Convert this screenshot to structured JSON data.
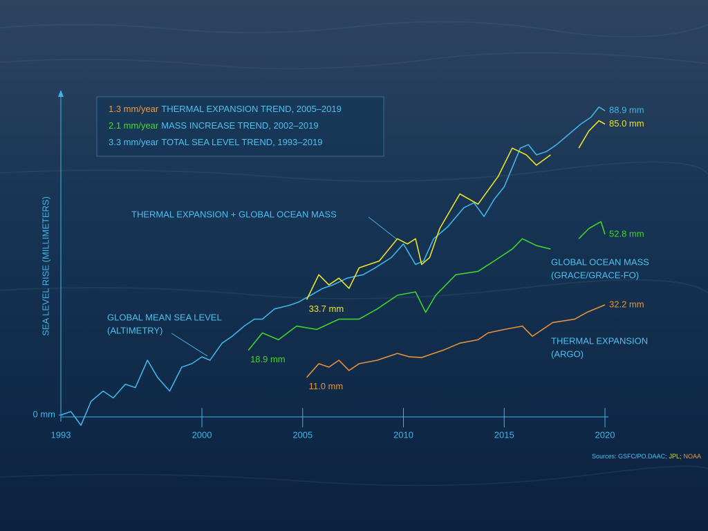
{
  "chart_data": {
    "type": "line",
    "ylabel": "SEA LEVEL RISE (MILLIMETERS)",
    "xlim": [
      1993,
      2020
    ],
    "ylim": [
      -5,
      95
    ],
    "xticks": [
      1993,
      2000,
      2005,
      2010,
      2015,
      2020
    ],
    "yticks": [
      {
        "value": 0,
        "label": "0 mm"
      }
    ],
    "trends": [
      {
        "rate": "1.3 mm/year",
        "label": "THERMAL EXPANSION TREND, 2005–2019",
        "color": "#eb9a3e"
      },
      {
        "rate": "2.1 mm/year",
        "label": "MASS INCREASE TREND, 2002–2019",
        "color": "#46d82e"
      },
      {
        "rate": "3.3 mm/year",
        "label": "TOTAL SEA LEVEL TREND, 1993–2019",
        "color": "#4cc0ee"
      }
    ],
    "sources": [
      {
        "text": "Sources: GSFC/PO.DAAC;",
        "color": "#4cc0ee"
      },
      {
        "text": "JPL;",
        "color": "#c8e020"
      },
      {
        "text": "NOAA",
        "color": "#eb9a3e"
      }
    ],
    "series": [
      {
        "name": "GLOBAL MEAN SEA LEVEL",
        "source": "(ALTIMETRY)",
        "color": "#3fb6e8",
        "x": [
          1993,
          1993.5,
          1994,
          1994.5,
          1995.1,
          1995.6,
          1996.2,
          1996.7,
          1997.3,
          1997.8,
          1998.4,
          1999,
          1999.5,
          2000,
          2000.4,
          2001,
          2001.5,
          2002.1,
          2002.6,
          2003,
          2003.6,
          2004.3,
          2004.8,
          2005.4,
          2006,
          2006.5,
          2007.2,
          2008,
          2008.6,
          2009.4,
          2010,
          2010.6,
          2011,
          2011.5,
          2012.2,
          2013,
          2013.5,
          2014,
          2014.5,
          2015,
          2015.8,
          2016.2,
          2016.6,
          2017.1,
          2017.6,
          2018.2,
          2018.8,
          2019.3,
          2019.7,
          2020
        ],
        "values": [
          0,
          1,
          -3,
          4,
          7,
          5,
          9,
          8,
          16,
          11,
          7,
          14,
          15,
          17,
          16,
          21,
          23,
          26,
          28,
          28,
          31,
          32,
          33,
          35,
          37,
          38,
          40,
          41,
          43,
          46,
          50,
          44,
          45,
          51.5,
          55,
          60.6,
          62,
          58,
          63,
          66.7,
          78,
          79,
          76,
          77,
          79,
          82,
          85,
          87,
          90,
          88.9
        ],
        "value_labels": [
          null,
          null,
          null,
          null,
          null,
          null,
          null,
          null,
          null,
          null,
          null,
          null,
          null,
          null,
          null,
          null,
          null,
          null,
          null,
          null,
          null,
          null,
          null,
          null,
          null,
          null,
          null,
          null,
          null,
          null,
          null,
          null,
          null,
          null,
          null,
          null,
          null,
          null,
          null,
          null,
          null,
          null,
          null,
          null,
          null,
          null,
          null,
          null,
          null,
          "88.9 mm"
        ]
      },
      {
        "name": "THERMAL EXPANSION + GLOBAL OCEAN MASS",
        "color": "#f0e523",
        "x": [
          2005.2,
          2005.8,
          2006.3,
          2006.8,
          2007.3,
          2007.8,
          2008.8,
          2009.7,
          2010.2,
          2010.6,
          2010.9,
          2011.3,
          2011.8,
          2012.8,
          2013.7,
          2014.7,
          2015.4,
          2016.1,
          2016.6,
          2017.3,
          2017.9,
          2018.7,
          2019.2,
          2019.7,
          2020
        ],
        "values": [
          33.7,
          41,
          38,
          40,
          37,
          43,
          45,
          51.5,
          50,
          51.5,
          44,
          46,
          54.5,
          64.6,
          61.6,
          69.7,
          78,
          76,
          73,
          76,
          null,
          78,
          83,
          86,
          85.0
        ],
        "value_labels": [
          "33.7 mm",
          null,
          null,
          null,
          null,
          null,
          null,
          null,
          null,
          null,
          null,
          null,
          null,
          null,
          null,
          null,
          null,
          null,
          null,
          null,
          null,
          null,
          null,
          null,
          "85.0 mm"
        ]
      },
      {
        "name": "GLOBAL OCEAN MASS",
        "source": "(GRACE/GRACE-FO)",
        "color": "#3dd62a",
        "x": [
          2002.3,
          2003,
          2003.8,
          2004.7,
          2005.7,
          2006.8,
          2007.8,
          2008.7,
          2009.7,
          2010.6,
          2011.1,
          2011.6,
          2012.6,
          2013.7,
          2014.5,
          2015.4,
          2015.9,
          2016.6,
          2017.3,
          2017.9,
          2018.7,
          2019.2,
          2019.8,
          2020
        ],
        "values": [
          18.9,
          24,
          22,
          26,
          25,
          28,
          28,
          31,
          35,
          36,
          30,
          35,
          41,
          42,
          45,
          48.5,
          51.5,
          49.5,
          48.5,
          null,
          51.5,
          54.5,
          56.5,
          52.8
        ],
        "value_labels": [
          "18.9 mm",
          null,
          null,
          null,
          null,
          null,
          null,
          null,
          null,
          null,
          null,
          null,
          null,
          null,
          null,
          null,
          null,
          null,
          null,
          null,
          null,
          null,
          null,
          "52.8 mm"
        ]
      },
      {
        "name": "THERMAL EXPANSION",
        "source": "(ARGO)",
        "color": "#e8943a",
        "x": [
          2005.2,
          2005.8,
          2006.3,
          2006.8,
          2007.3,
          2007.8,
          2008.7,
          2009.7,
          2010.3,
          2010.9,
          2011.5,
          2012,
          2012.8,
          2013.7,
          2014.2,
          2015,
          2015.9,
          2016.4,
          2017.4,
          2018.5,
          2019.1,
          2020
        ],
        "values": [
          11.0,
          15,
          14,
          16,
          13,
          15,
          16,
          18,
          17,
          16.8,
          18,
          19,
          21,
          22,
          24,
          25,
          26,
          23,
          27,
          28,
          30,
          32.2
        ],
        "value_labels": [
          "11.0 mm",
          null,
          null,
          null,
          null,
          null,
          null,
          null,
          null,
          null,
          null,
          null,
          null,
          null,
          null,
          null,
          null,
          null,
          null,
          null,
          null,
          "32.2 mm"
        ]
      }
    ]
  }
}
